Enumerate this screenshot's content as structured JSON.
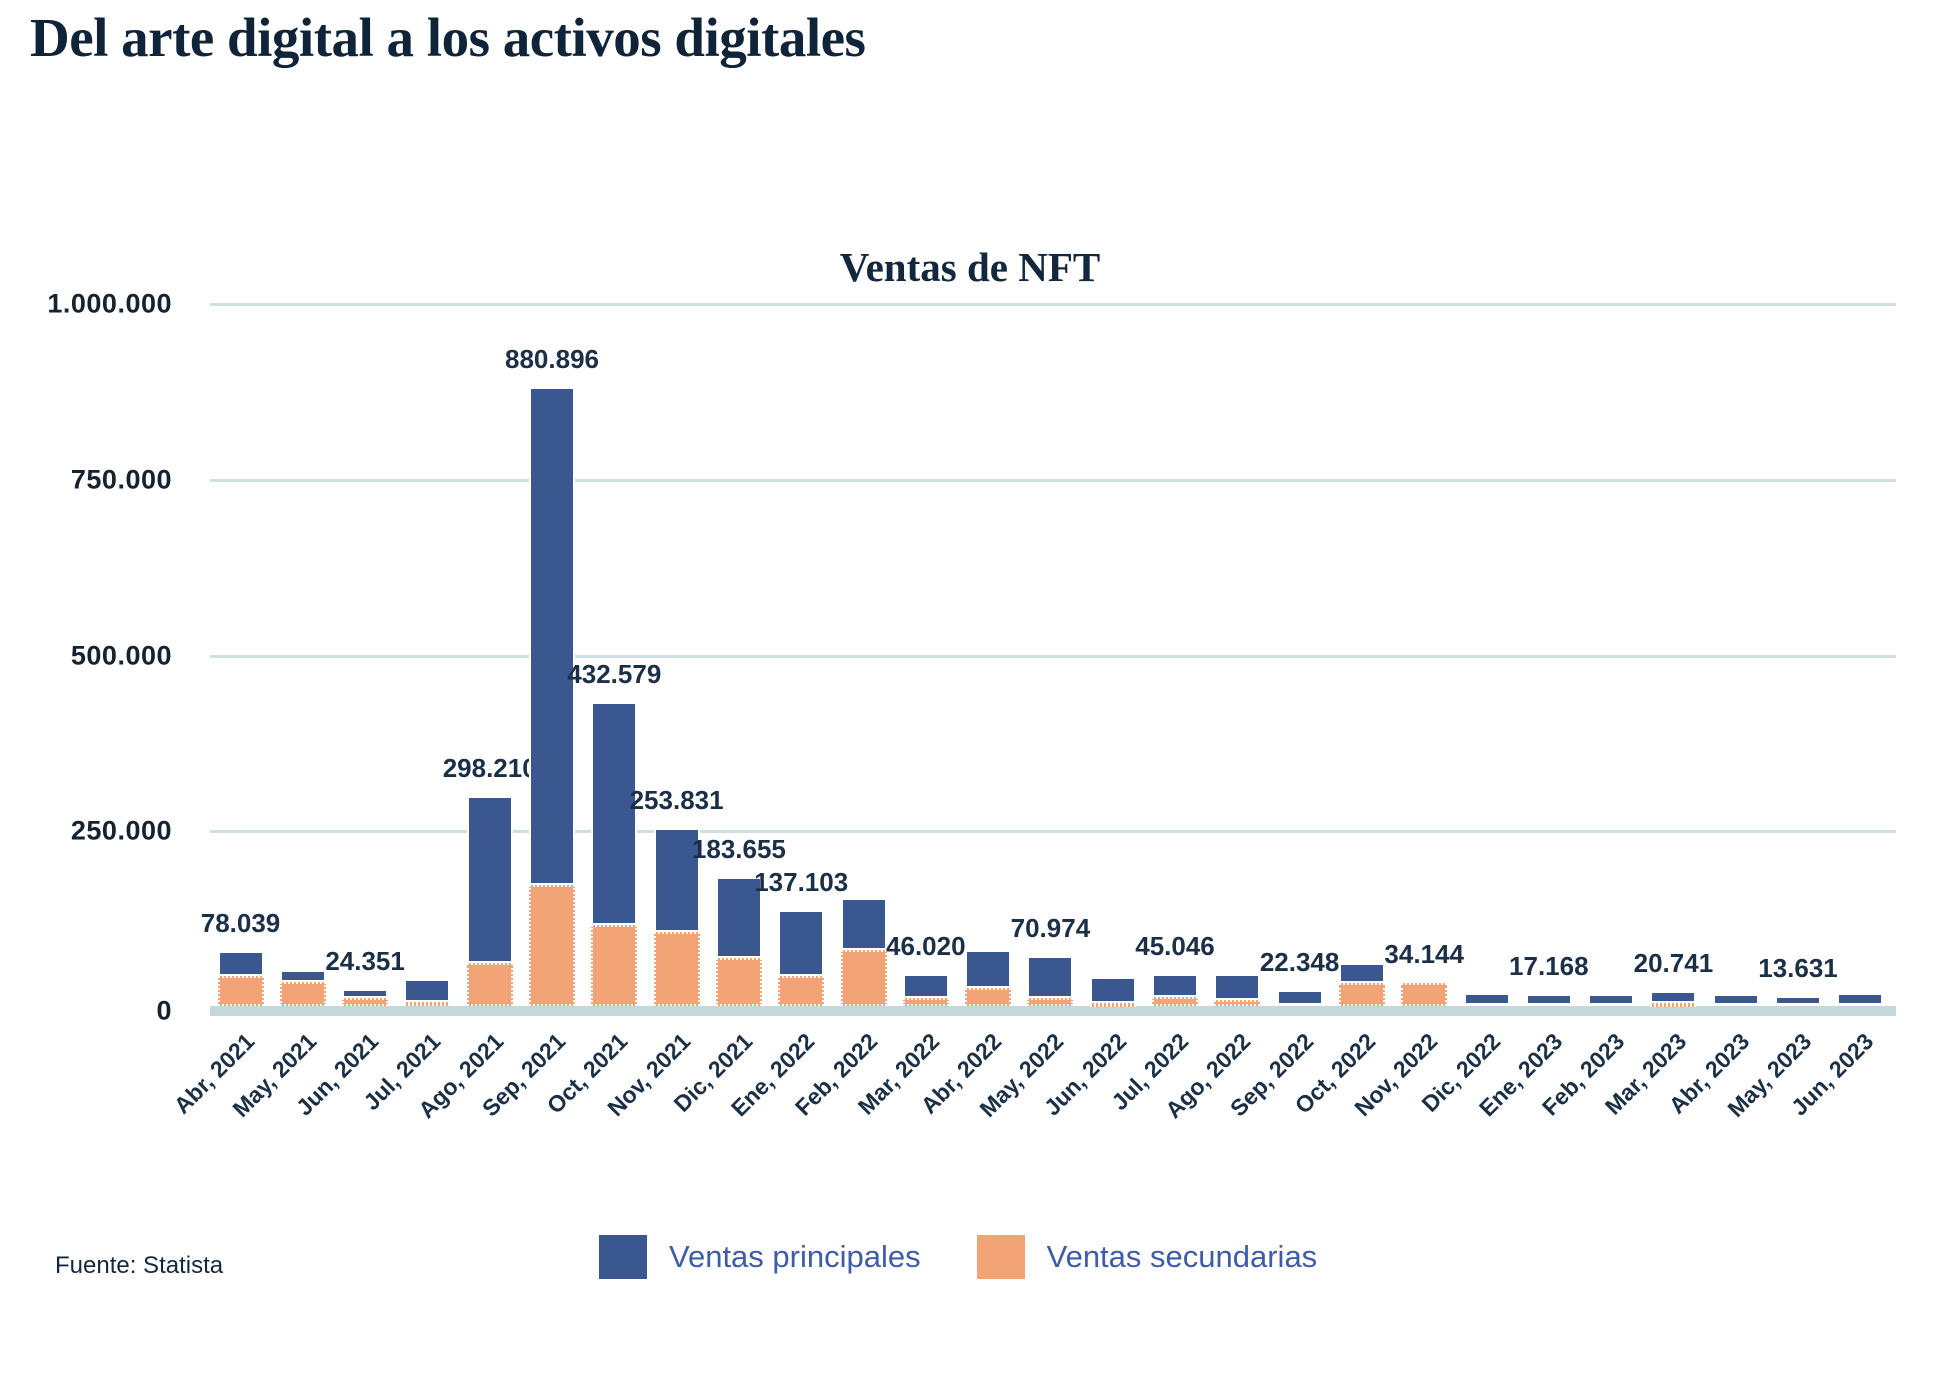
{
  "page": {
    "title": "Del arte digital a los activos digitales",
    "source": "Fuente: Statista"
  },
  "chart_data": {
    "type": "bar",
    "stacked": true,
    "title": "Ventas de NFT",
    "categories": [
      "Abr, 2021",
      "May, 2021",
      "Jun, 2021",
      "Jul, 2021",
      "Ago, 2021",
      "Sep, 2021",
      "Oct, 2021",
      "Nov, 2021",
      "Dic, 2021",
      "Ene, 2022",
      "Feb, 2022",
      "Mar, 2022",
      "Abr, 2022",
      "May, 2022",
      "Jun, 2022",
      "Jul, 2022",
      "Ago, 2022",
      "Sep, 2022",
      "Oct, 2022",
      "Nov, 2022",
      "Dic, 2022",
      "Ene, 2023",
      "Feb, 2023",
      "Mar, 2023",
      "Abr, 2023",
      "May, 2023",
      "Jun, 2023"
    ],
    "series": [
      {
        "name": "Ventas principales",
        "color": "#3B578F",
        "values": [
          35039,
          17000,
          12351,
          32000,
          237210,
          708896,
          317579,
          148831,
          115655,
          95103,
          73000,
          35020,
          54000,
          59974,
          37000,
          32046,
          37000,
          21348,
          28000,
          1000,
          17500,
          16168,
          16000,
          16741,
          15500,
          12631,
          17000
        ]
      },
      {
        "name": "Ventas secundarias",
        "color": "#F2A476",
        "values": [
          43000,
          34000,
          12000,
          6000,
          61000,
          172000,
          115000,
          105000,
          68000,
          42000,
          80000,
          11000,
          26000,
          11000,
          4000,
          13000,
          9000,
          1000,
          33000,
          33144,
          1000,
          1000,
          1000,
          4000,
          1000,
          1000,
          1000
        ]
      }
    ],
    "stack_order_bottom_to_top": [
      "Ventas secundarias",
      "Ventas principales"
    ],
    "total_labels": [
      "78.039",
      null,
      "24.351",
      null,
      "298.210",
      "880.896",
      "432.579",
      "253.831",
      "183.655",
      "137.103",
      null,
      "46.020",
      null,
      "70.974",
      null,
      "45.046",
      null,
      "22.348",
      null,
      "34.144",
      null,
      "17.168",
      null,
      "20.741",
      null,
      "13.631",
      null
    ],
    "y_axis": {
      "tick_labels": [
        "0",
        "250.000",
        "500.000",
        "750.000",
        "1.000.000"
      ],
      "tick_values": [
        0,
        250000,
        500000,
        750000,
        1000000
      ],
      "max": 1000000
    },
    "gridlines": true,
    "legend_position": "bottom",
    "colors": {
      "grid": "#CEDFE1",
      "axis_line": "#C2D8D9",
      "value_label_text": "#1B2F47",
      "axis_text": "#15222F",
      "x_label_text": "#1B3045",
      "legend_text": "#3E5CA8",
      "title_text": "#0F2439"
    }
  }
}
